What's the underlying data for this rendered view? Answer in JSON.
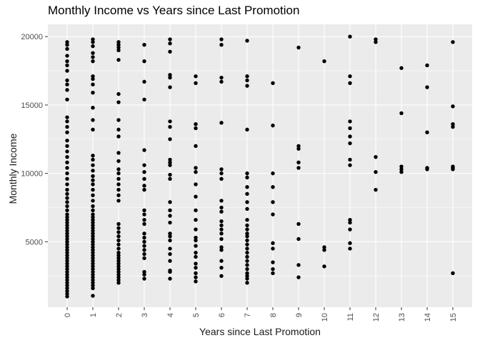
{
  "chart_data": {
    "type": "scatter",
    "title": "Monthly Income vs Years since Last Promotion",
    "xlabel": "Years since Last Promotion",
    "ylabel": "Monthly Income",
    "xlim": [
      -0.75,
      15.75
    ],
    "ylim": [
      210,
      20900
    ],
    "x_ticks": [
      0,
      1,
      2,
      3,
      4,
      5,
      6,
      7,
      8,
      9,
      10,
      11,
      12,
      13,
      14,
      15
    ],
    "y_ticks": [
      5000,
      10000,
      15000,
      20000
    ],
    "grid": true,
    "legend": "none",
    "colors": {
      "panel": "#ebebeb",
      "grid": "#ffffff",
      "point": "#000000",
      "tick_text": "#4d4d4d"
    },
    "points": {
      "0": [
        1000,
        1200,
        1400,
        1600,
        1800,
        2000,
        2200,
        2400,
        2600,
        2800,
        3000,
        3200,
        3400,
        3600,
        3800,
        4000,
        4200,
        4400,
        4600,
        4800,
        5000,
        5200,
        5400,
        5600,
        5800,
        6000,
        6200,
        6400,
        6600,
        6800,
        7000,
        7300,
        7600,
        7900,
        8200,
        8500,
        8800,
        9200,
        9600,
        10000,
        10400,
        10800,
        11200,
        11600,
        12000,
        12400,
        13000,
        13400,
        13800,
        14100,
        15400,
        16100,
        16500,
        16800,
        17500,
        17900,
        18200,
        18600,
        19100,
        19400,
        19600
      ],
      "1": [
        1050,
        1600,
        1800,
        2000,
        2200,
        2400,
        2600,
        2800,
        3000,
        3200,
        3400,
        3600,
        3800,
        4000,
        4200,
        4400,
        4600,
        4800,
        5000,
        5200,
        5400,
        5600,
        5800,
        6000,
        6200,
        6400,
        6600,
        6800,
        7000,
        7300,
        7600,
        8000,
        8400,
        8800,
        9200,
        9500,
        9800,
        10200,
        10600,
        11000,
        11300,
        13200,
        13900,
        14800,
        15900,
        16500,
        16900,
        17100,
        18200,
        18500,
        18800,
        19300,
        19600,
        19800
      ],
      "2": [
        2000,
        2200,
        2400,
        2600,
        2800,
        3000,
        3200,
        3400,
        3600,
        3800,
        4000,
        4200,
        4500,
        4800,
        5100,
        5400,
        5700,
        6000,
        6300,
        8000,
        8400,
        8800,
        9200,
        9600,
        10000,
        10300,
        10900,
        11500,
        12700,
        13200,
        13900,
        15200,
        15800,
        18300,
        19000,
        19200,
        19400,
        19600
      ],
      "3": [
        2300,
        2600,
        2800,
        3800,
        4100,
        4400,
        4700,
        5000,
        5300,
        5600,
        6300,
        6600,
        7000,
        7300,
        8800,
        9100,
        9600,
        10100,
        10600,
        11700,
        15400,
        16700,
        18200,
        19400
      ],
      "4": [
        2300,
        2800,
        2900,
        3600,
        4100,
        4500,
        5100,
        5400,
        5600,
        6400,
        6900,
        7300,
        7900,
        9600,
        9900,
        10600,
        10800,
        11000,
        12500,
        13400,
        13800,
        16300,
        17000,
        17200,
        18900,
        19500,
        19800
      ],
      "5": [
        2100,
        2400,
        2700,
        3100,
        3400,
        3900,
        4200,
        4700,
        5100,
        5300,
        5900,
        6600,
        7300,
        8300,
        9200,
        10100,
        10400,
        12000,
        13300,
        13600,
        16600,
        17100
      ],
      "6": [
        2500,
        3100,
        3600,
        4400,
        4600,
        5200,
        5600,
        5900,
        6200,
        6500,
        7200,
        7500,
        8000,
        9600,
        10000,
        10300,
        13700,
        16700,
        17000,
        19400,
        19800
      ],
      "7": [
        2000,
        2300,
        2500,
        2700,
        3000,
        3300,
        3600,
        3900,
        4200,
        4500,
        4800,
        5100,
        5400,
        5600,
        5900,
        6200,
        6600,
        7400,
        7900,
        8500,
        9000,
        9700,
        10000,
        13200,
        16400,
        16800,
        17100,
        19700
      ],
      "8": [
        2700,
        3000,
        3500,
        4500,
        4900,
        7000,
        7900,
        9000,
        10000,
        13500,
        16600
      ],
      "9": [
        2400,
        3300,
        5200,
        6300,
        10400,
        10800,
        11800,
        12000,
        19200
      ],
      "10": [
        3200,
        4400,
        4600,
        18200
      ],
      "11": [
        4500,
        4900,
        5900,
        6400,
        6600,
        10600,
        11000,
        12200,
        12700,
        13300,
        13800,
        16600,
        17100,
        20000
      ],
      "12": [
        8800,
        10100,
        11200,
        19600,
        19800
      ],
      "13": [
        10100,
        10300,
        10500,
        14400,
        17700
      ],
      "14": [
        10300,
        10400,
        13000,
        16300,
        17900
      ],
      "15": [
        2700,
        10300,
        10400,
        10500,
        13400,
        13600,
        14900,
        19600
      ]
    }
  }
}
